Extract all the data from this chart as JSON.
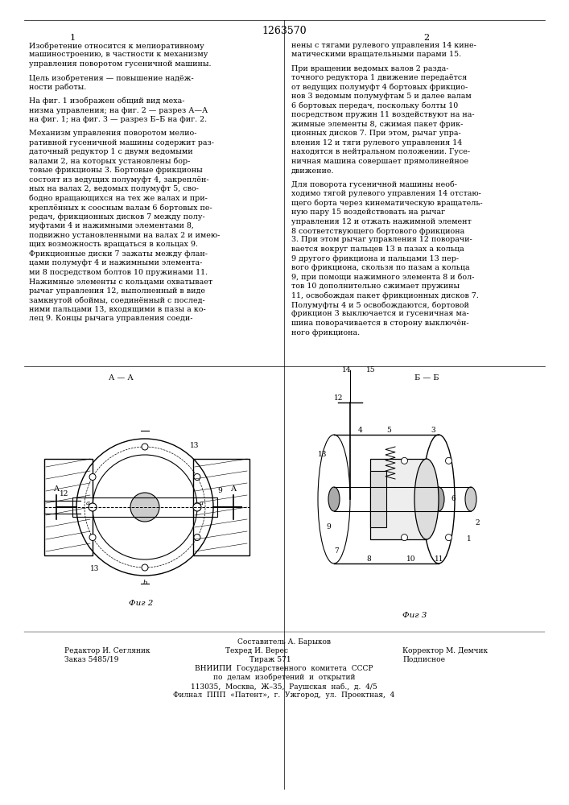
{
  "patent_number": "1263570",
  "page_col1": "1",
  "page_col2": "2",
  "text_col1": [
    "Изобретение относится к мелиоративному",
    "машиностроению, в частности к механизму",
    "управления поворотом гусеничной машины.",
    "",
    "Цель изобретения — повышение надёж-",
    "ности работы.",
    "",
    "На фиг. 1 изображен общий вид меха-",
    "низма управления; на фиг. 2 — разрез А—А",
    "на фиг. 1; на фиг. 3 — разрез Б–Б на фиг. 2.",
    "",
    "Механизм управления поворотом мелио-",
    "ративной гусеничной машины содержит раз-",
    "даточный редуктор 1 с двумя ведомыми",
    "валами 2, на которых установлены бор-",
    "товые фрикционы 3. Бортовые фрикционы",
    "состоят из ведущих полумуфт 4, закреплён-",
    "ных на валах 2, ведомых полумуфт 5, сво-",
    "бодно вращающихся на тех же валах и при-",
    "креплённых к соосным валам 6 бортовых пе-",
    "редач, фрикционных дисков 7 между полу-",
    "муфтами 4 и нажимными элементами 8,",
    "подвижно установленными на валах 2 и имею-",
    "щих возможность вращаться в кольцах 9.",
    "Фрикционные диски 7 зажаты между флан-",
    "цами полумуфт 4 и нажимными элемента-",
    "ми 8 посредством болтов 10 пружинами 11.",
    "Нажимные элементы с кольцами охватывает",
    "рычаг управления 12, выполненный в виде",
    "замкнутой обоймы, соединённый с послед-",
    "ними пальцами 13, входящими в пазы а ко-",
    "лец 9. Концы рычага управления соеди-"
  ],
  "text_col2": [
    "нены с тягами рулевого управления 14 кине-",
    "матическими вращательными парами 15.",
    "",
    "При вращении ведомых валов 2 разда-",
    "точного редуктора 1 движение передаётся",
    "от ведущих полумуфт 4 бортовых фрикцио-",
    "нов 3 ведомым полумуфтам 5 и далее валам",
    "6 бортовых передач, поскольку болты 10",
    "посредством пружин 11 воздействуют на на-",
    "жимные элементы 8, сжимая пакет фрик-",
    "ционных дисков 7. При этом, рычаг упра-",
    "вления 12 и тяги рулевого управления 14",
    "находятся в нейтральном положении. Гусе-",
    "ничная машина совершает прямолинейное",
    "движение.",
    "",
    "Для поворота гусеничной машины необ-",
    "ходимо тягой рулевого управления 14 отстаю-",
    "щего борта через кинематическую вращатель-",
    "ную пару 15 воздействовать на рычаг",
    "управления 12 и отжать нажимной элемент",
    "8 соответствующего бортового фрикциона",
    "3. При этом рычаг управления 12 поворачи-",
    "вается вокруг пальцев 13 в пазах а кольца",
    "9 другого фрикциона и пальцами 13 пер-",
    "вого фрикциона, скользя по пазам а кольца",
    "9, при помощи нажимного элемента 8 и бол-",
    "тов 10 дополнительно сжимает пружины",
    "11, освобождая пакет фрикционных дисков 7.",
    "Полумуфты 4 и 5 освобождаются, бортовой",
    "фрикцион 3 выключается и гусеничная ма-",
    "шина поворачивается в сторону выключён-",
    "ного фрикциона."
  ],
  "fig2_label": "Фиг. 2",
  "fig3_label": "Фиг. 3",
  "fig2_section_label": "А — А",
  "fig3_section_label": "Б — Б",
  "footer_composer": "Составитель А. Барыков",
  "footer_editor": "Редактор И. Сегляник",
  "footer_techred": "Техред И. Верес",
  "footer_corrector": "Корректор М. Демчик",
  "footer_order": "Заказ 5485/19",
  "footer_circulation": "Тираж 571",
  "footer_signed": "Подписное",
  "footer_org1": "ВНИИПИ  Государственного  комитета  СССР",
  "footer_org2": "по  делам  изобретений  и  открытий",
  "footer_address1": "113035,  Москва,  Ж–35,  Раушская  наб.,  д.  4/5",
  "footer_address2": "Филнал  ППП  «Патент»,  г.  Ужгород,  ул.  Проектная,  4",
  "bg_color": "#ffffff",
  "text_color": "#000000",
  "line_color": "#000000"
}
